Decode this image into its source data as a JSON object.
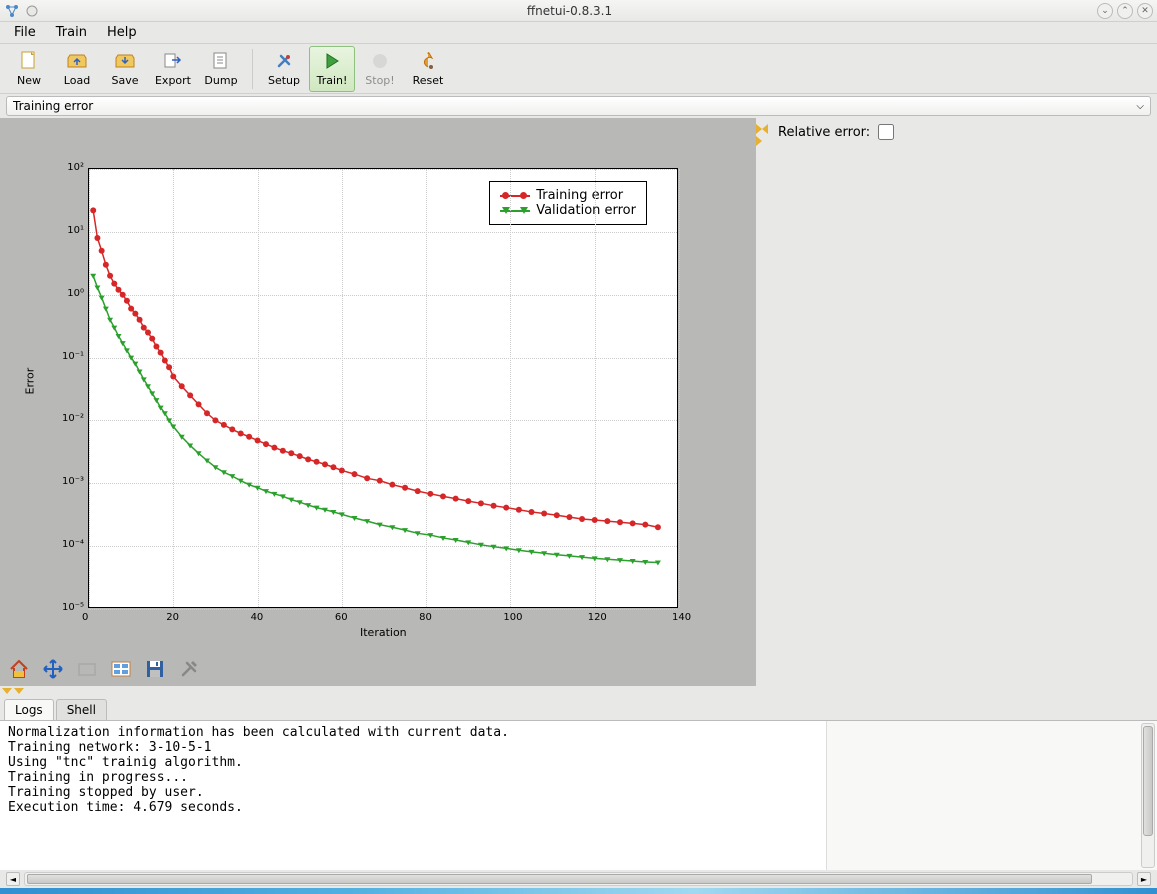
{
  "window": {
    "title": "ffnetui-0.8.3.1"
  },
  "menus": [
    "File",
    "Train",
    "Help"
  ],
  "toolbar": [
    {
      "label": "New",
      "icon": "new"
    },
    {
      "label": "Load",
      "icon": "load"
    },
    {
      "label": "Save",
      "icon": "save"
    },
    {
      "label": "Export",
      "icon": "export"
    },
    {
      "label": "Dump",
      "icon": "dump"
    },
    {
      "sep": true
    },
    {
      "label": "Setup",
      "icon": "setup"
    },
    {
      "label": "Train!",
      "icon": "train",
      "active": true
    },
    {
      "label": "Stop!",
      "icon": "stop",
      "disabled": true
    },
    {
      "label": "Reset",
      "icon": "reset"
    }
  ],
  "selector": {
    "value": "Training error"
  },
  "side_panel": {
    "relative_error_label": "Relative error:",
    "relative_error_checked": false
  },
  "bottom_tabs": [
    {
      "label": "Logs",
      "active": true
    },
    {
      "label": "Shell",
      "active": false
    }
  ],
  "logs": "Normalization information has been calculated with current data.\nTraining network: 3-10-5-1\nUsing \"tnc\" trainig algorithm.\nTraining in progress...\nTraining stopped by user.\nExecution time: 4.679 seconds.",
  "chart": {
    "type": "line-log",
    "xlabel": "Iteration",
    "ylabel": "Error",
    "xlim": [
      0,
      140
    ],
    "xtick_step": 20,
    "ylim_exp": [
      -5,
      2
    ],
    "background_color": "#ffffff",
    "grid_color": "#cccccc",
    "x_ticks": [
      0,
      20,
      40,
      60,
      80,
      100,
      120,
      140
    ],
    "y_tick_labels": [
      "10⁻⁵",
      "10⁻⁴",
      "10⁻³",
      "10⁻²",
      "10⁻¹",
      "10⁰",
      "10¹",
      "10²"
    ],
    "legend": [
      {
        "label": "Training error",
        "color": "#d62728",
        "marker": "circle"
      },
      {
        "label": "Validation error",
        "color": "#2ca02c",
        "marker": "triangle-down"
      }
    ],
    "series": {
      "training": {
        "color": "#d62728",
        "marker": "circle",
        "marker_size": 6,
        "line_width": 1.5,
        "x": [
          1,
          2,
          3,
          4,
          5,
          6,
          7,
          8,
          9,
          10,
          11,
          12,
          13,
          14,
          15,
          16,
          17,
          18,
          19,
          20,
          22,
          24,
          26,
          28,
          30,
          32,
          34,
          36,
          38,
          40,
          42,
          44,
          46,
          48,
          50,
          52,
          54,
          56,
          58,
          60,
          63,
          66,
          69,
          72,
          75,
          78,
          81,
          84,
          87,
          90,
          93,
          96,
          99,
          102,
          105,
          108,
          111,
          114,
          117,
          120,
          123,
          126,
          129,
          132,
          135
        ],
        "y": [
          22,
          8,
          5,
          3,
          2,
          1.5,
          1.2,
          1.0,
          0.8,
          0.6,
          0.5,
          0.4,
          0.3,
          0.25,
          0.2,
          0.15,
          0.12,
          0.09,
          0.07,
          0.05,
          0.035,
          0.025,
          0.018,
          0.013,
          0.01,
          0.0085,
          0.0072,
          0.0062,
          0.0055,
          0.0048,
          0.0042,
          0.0037,
          0.0033,
          0.003,
          0.0027,
          0.0024,
          0.0022,
          0.002,
          0.0018,
          0.0016,
          0.0014,
          0.0012,
          0.0011,
          0.00095,
          0.00085,
          0.00075,
          0.00068,
          0.00062,
          0.00057,
          0.00052,
          0.00048,
          0.00044,
          0.00041,
          0.00038,
          0.00035,
          0.00033,
          0.00031,
          0.00029,
          0.00027,
          0.00026,
          0.00025,
          0.00024,
          0.00023,
          0.00022,
          0.0002
        ]
      },
      "validation": {
        "color": "#2ca02c",
        "marker": "triangle-down",
        "marker_size": 6,
        "line_width": 1.5,
        "x": [
          1,
          2,
          3,
          4,
          5,
          6,
          7,
          8,
          9,
          10,
          11,
          12,
          13,
          14,
          15,
          16,
          17,
          18,
          19,
          20,
          22,
          24,
          26,
          28,
          30,
          32,
          34,
          36,
          38,
          40,
          42,
          44,
          46,
          48,
          50,
          52,
          54,
          56,
          58,
          60,
          63,
          66,
          69,
          72,
          75,
          78,
          81,
          84,
          87,
          90,
          93,
          96,
          99,
          102,
          105,
          108,
          111,
          114,
          117,
          120,
          123,
          126,
          129,
          132,
          135
        ],
        "y": [
          2.0,
          1.3,
          0.9,
          0.6,
          0.4,
          0.3,
          0.22,
          0.17,
          0.13,
          0.1,
          0.08,
          0.06,
          0.045,
          0.035,
          0.027,
          0.021,
          0.016,
          0.013,
          0.01,
          0.008,
          0.0055,
          0.004,
          0.003,
          0.0023,
          0.0018,
          0.0015,
          0.0013,
          0.0011,
          0.00095,
          0.00085,
          0.00075,
          0.00068,
          0.00062,
          0.00055,
          0.0005,
          0.00045,
          0.00041,
          0.00038,
          0.00035,
          0.00032,
          0.00028,
          0.00025,
          0.00022,
          0.0002,
          0.00018,
          0.00016,
          0.00015,
          0.000135,
          0.000125,
          0.000115,
          0.000105,
          9.8e-05,
          9.2e-05,
          8.6e-05,
          8.1e-05,
          7.7e-05,
          7.3e-05,
          7e-05,
          6.7e-05,
          6.4e-05,
          6.2e-05,
          6e-05,
          5.8e-05,
          5.6e-05,
          5.5e-05
        ]
      }
    }
  },
  "plot_toolbar": [
    "home",
    "pan",
    "zoom",
    "subplots",
    "save",
    "configure"
  ]
}
